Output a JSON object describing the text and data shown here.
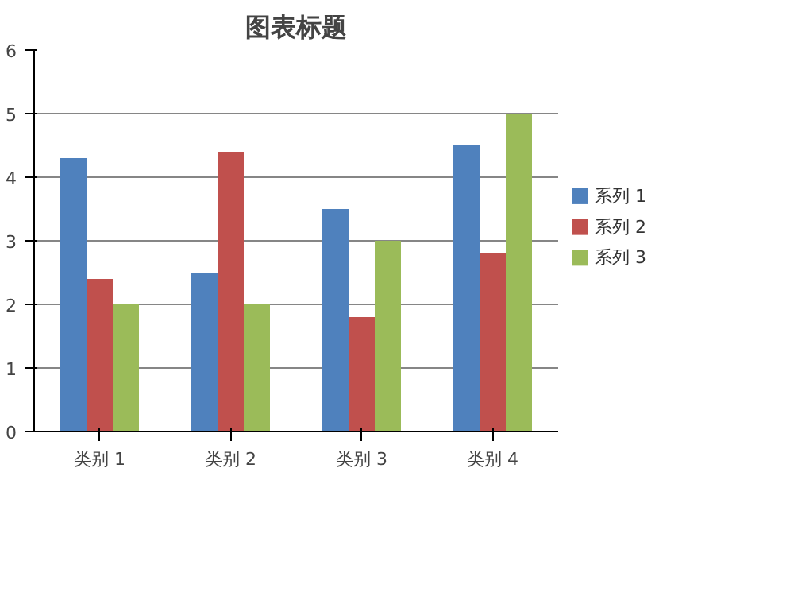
{
  "chart_data": {
    "type": "bar",
    "title": "图表标题",
    "categories": [
      "类别 1",
      "类别 2",
      "类别 3",
      "类别 4"
    ],
    "series": [
      {
        "name": "系列 1",
        "color": "#4f81bd",
        "values": [
          4.3,
          2.5,
          3.5,
          4.5
        ]
      },
      {
        "name": "系列 2",
        "color": "#c0504d",
        "values": [
          2.4,
          4.4,
          1.8,
          2.8
        ]
      },
      {
        "name": "系列 3",
        "color": "#9bbb59",
        "values": [
          2,
          2,
          3,
          5
        ]
      }
    ],
    "ylim": [
      0,
      6
    ],
    "yticks": [
      0,
      1,
      2,
      3,
      4,
      5,
      6
    ],
    "grid": "y",
    "legend": "right"
  }
}
